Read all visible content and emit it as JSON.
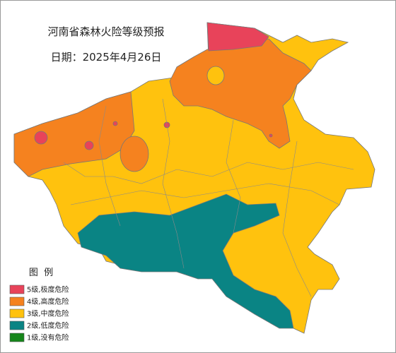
{
  "title": "河南省森林火险等级预报",
  "date": "日期：2025年4月26日",
  "legend": {
    "title": "图  例",
    "items": [
      {
        "label": "5级,极度危险",
        "color": "#e8435a"
      },
      {
        "label": "4级,高度危险",
        "color": "#f5821f"
      },
      {
        "label": "3级,中度危险",
        "color": "#ffc20e"
      },
      {
        "label": "2级,低度危险",
        "color": "#0a8484"
      },
      {
        "label": "1级,没有危险",
        "color": "#16861a"
      }
    ]
  }
}
